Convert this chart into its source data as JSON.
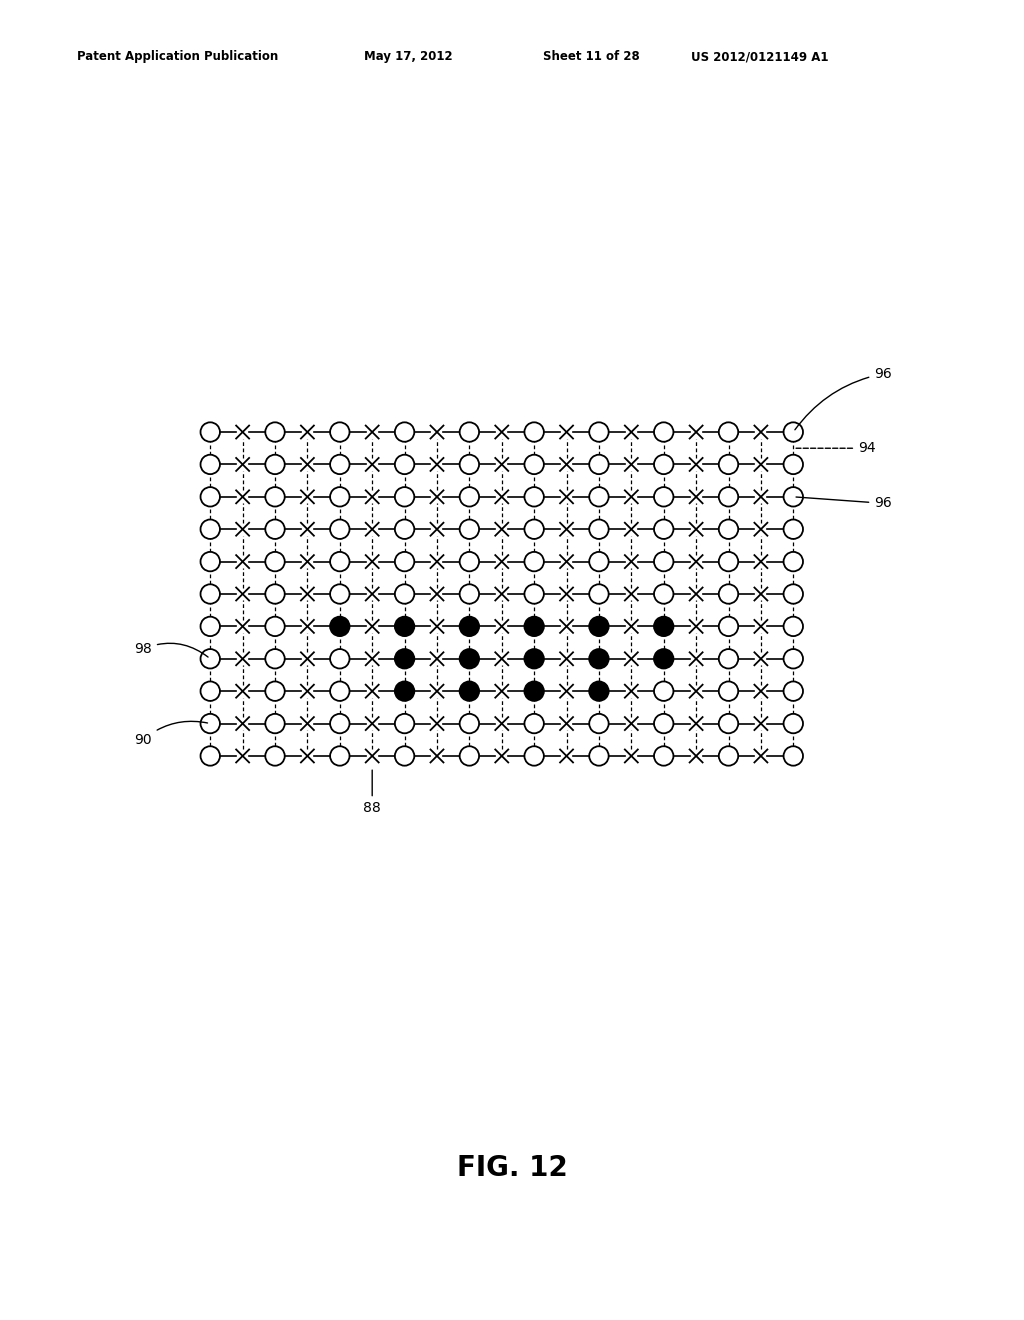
{
  "title_header": "Patent Application Publication",
  "header_date": "May 17, 2012",
  "header_sheet": "Sheet 11 of 28",
  "header_patent": "US 2012/0121149 A1",
  "fig_label": "FIG. 12",
  "background_color": "#ffffff",
  "n_rows": 11,
  "n_cols": 19,
  "label_88": "88",
  "label_90": "90",
  "label_94": "94",
  "label_96a": "96",
  "label_96b": "96",
  "label_98": "98",
  "black_circles": [
    [
      8,
      6
    ],
    [
      8,
      8
    ],
    [
      8,
      10
    ],
    [
      8,
      12
    ],
    [
      7,
      6
    ],
    [
      7,
      8
    ],
    [
      7,
      10
    ],
    [
      7,
      12
    ],
    [
      7,
      14
    ],
    [
      6,
      4
    ],
    [
      6,
      6
    ],
    [
      6,
      8
    ],
    [
      6,
      10
    ],
    [
      6,
      12
    ],
    [
      6,
      14
    ]
  ]
}
